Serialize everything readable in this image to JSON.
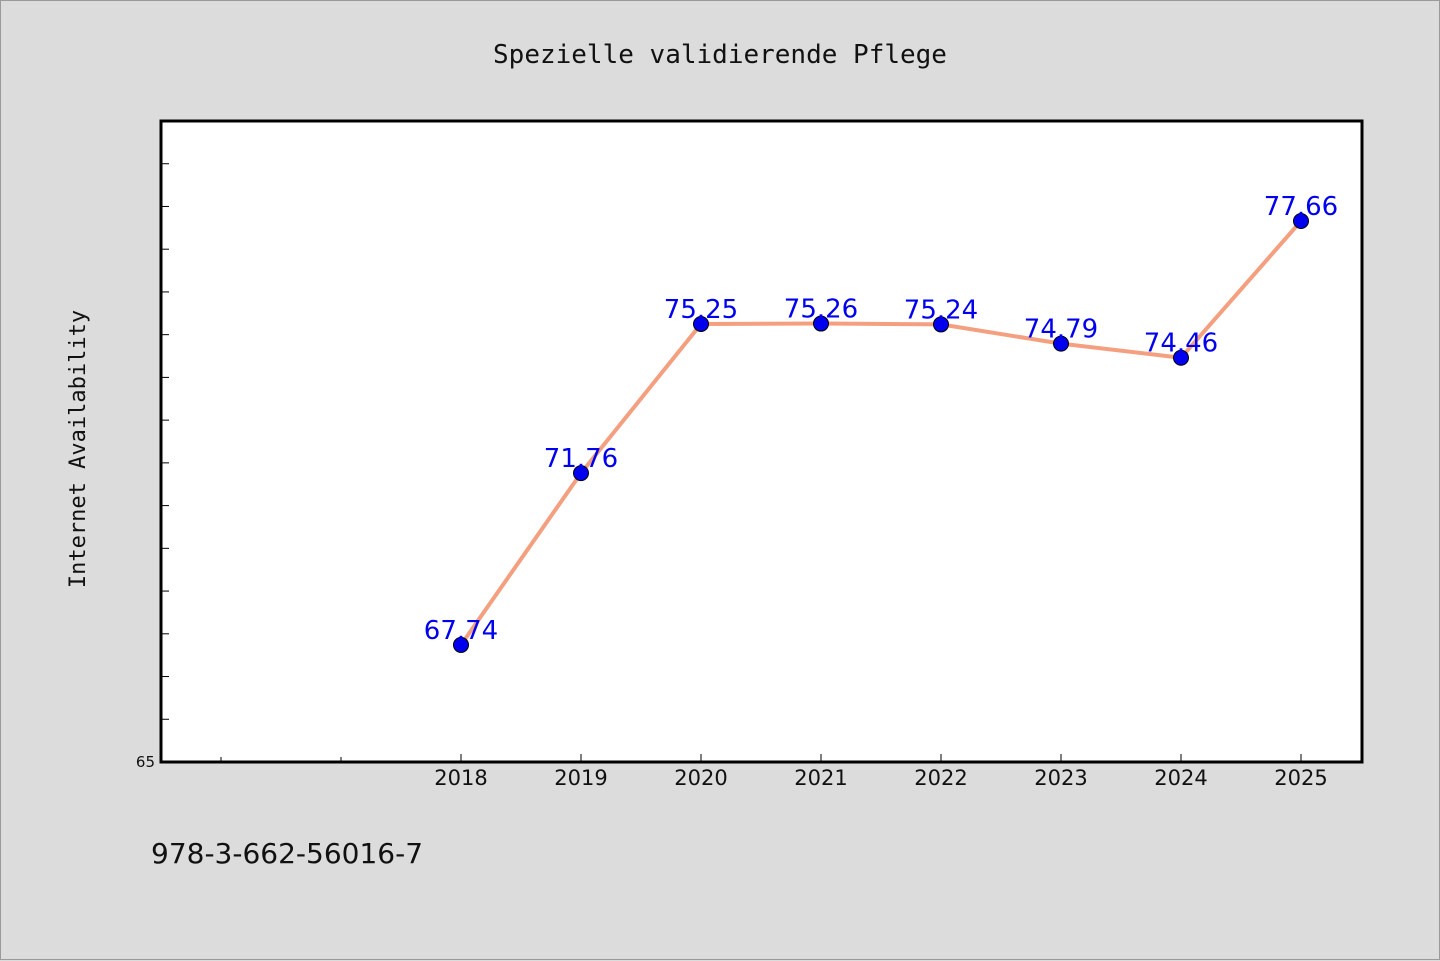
{
  "chart_data": {
    "type": "line",
    "title": "Spezielle validierende Pflege",
    "xlabel": "",
    "ylabel": "Internet Availability",
    "categories": [
      "2018",
      "2019",
      "2020",
      "2021",
      "2022",
      "2023",
      "2024",
      "2025"
    ],
    "series": [
      {
        "values": [
          67.74,
          71.76,
          75.25,
          75.26,
          75.24,
          74.79,
          74.46,
          77.66
        ],
        "labels": [
          "67.74",
          "71.76",
          "75.25",
          "75.26",
          "75.24",
          "74.79",
          "74.46",
          "77.66"
        ],
        "line_color": "#f4a080",
        "marker_color": "#0000ee"
      }
    ],
    "ylim": [
      65,
      80
    ],
    "yticks": [
      {
        "value": 65,
        "label": "65"
      }
    ],
    "grid": false,
    "legend": "none"
  },
  "footer": {
    "text": "978-3-662-56016-7"
  },
  "colors": {
    "background": "#dcdcdc",
    "plot_area": "#ffffff",
    "label": "#0000ee"
  }
}
